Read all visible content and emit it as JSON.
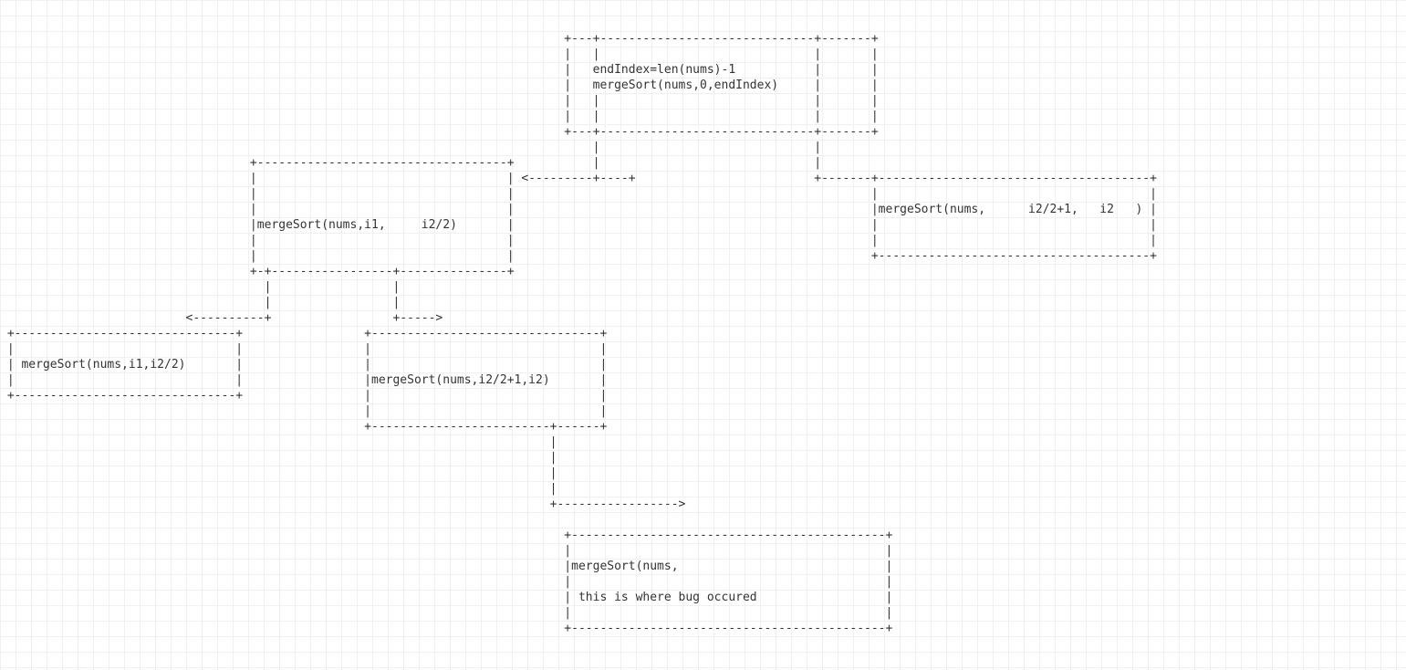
{
  "diagram": {
    "type": "flowchart",
    "font_family": "monospace",
    "font_size": 13,
    "line_height": 17,
    "text_color": "#333333",
    "background_color": "#ffffff",
    "grid_color": "#f0f0f0",
    "grid_size": 17,
    "nodes": [
      {
        "id": "root",
        "lines": [
          "endIndex=len(nums)-1",
          "mergeSort(nums,0,endIndex)"
        ]
      },
      {
        "id": "left1",
        "lines": [
          "mergeSort(nums,i1,     i2/2)"
        ]
      },
      {
        "id": "right1",
        "lines": [
          "mergeSort(nums,      i2/2+1,   i2   )"
        ]
      },
      {
        "id": "left2a",
        "lines": [
          "mergeSort(nums,i1,i2/2)"
        ]
      },
      {
        "id": "left2b",
        "lines": [
          "mergeSort(nums,i2/2+1,i2)"
        ]
      },
      {
        "id": "bug",
        "lines": [
          "mergeSort(nums,",
          "this is where bug occured"
        ]
      }
    ],
    "edges": [
      {
        "from": "root",
        "to": "left1",
        "dir": "left"
      },
      {
        "from": "root",
        "to": "right1",
        "dir": "right"
      },
      {
        "from": "left1",
        "to": "left2a",
        "dir": "left"
      },
      {
        "from": "left1",
        "to": "left2b",
        "dir": "right"
      },
      {
        "from": "left2b",
        "to": "bug",
        "dir": "right"
      }
    ],
    "ascii": "\n\n                                                                               +---+------------------------------+-------+\n                                                                               |   |                              |       |\n                                                                               |   endIndex=len(nums)-1           |       |\n                                                                               |   mergeSort(nums,0,endIndex)     |       |\n                                                                               |   |                              |       |\n                                                                               |   |                              |       |\n                                                                               +---+------------------------------+-------+\n                                                                                   |                              |\n                                   +-----------------------------------+           |                              |\n                                   |                                   | <---------+----+                         +-------+--------------------------------------+\n                                   |                                   |                                                  |                                      |\n                                   |                                   |                                                  |mergeSort(nums,      i2/2+1,   i2   ) |\n                                   |mergeSort(nums,i1,     i2/2)       |                                                  |                                      |\n                                   |                                   |                                                  |                                      |\n                                   |                                   |                                                  +--------------------------------------+\n                                   +-+-----------------+---------------+\n                                     |                 |\n                                     |                 |\n                          <----------+                 +----->\n +-------------------------------+                 +--------------------------------+\n |                               |                 |                                |\n | mergeSort(nums,i1,i2/2)       |                 |                                |\n |                               |                 |mergeSort(nums,i2/2+1,i2)       |\n +-------------------------------+                 |                                |\n                                                   |                                |\n                                                   +-------------------------+------+\n                                                                             |\n                                                                             |\n                                                                             |\n                                                                             |\n                                                                             +----------------->\n\n                                                                               +--------------------------------------------+\n                                                                               |                                            |\n                                                                               |mergeSort(nums,                             |\n                                                                               |                                            |\n                                                                               | this is where bug occured                  |\n                                                                               |                                            |\n                                                                               +--------------------------------------------+\n"
  }
}
